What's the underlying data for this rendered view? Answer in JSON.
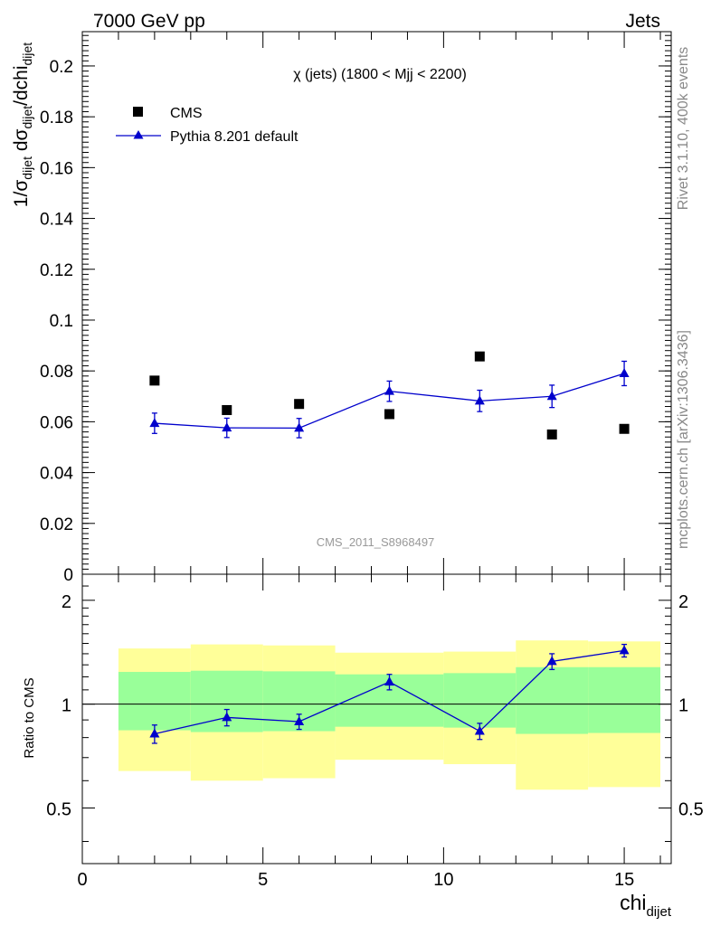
{
  "header": {
    "left": "7000 GeV pp",
    "right": "Jets"
  },
  "side_text": {
    "rivet": "Rivet 3.1.10,  400k events",
    "mcplots": "mcplots.cern.ch [arXiv:1306.3436]"
  },
  "colors": {
    "cms": "#000000",
    "pythia": "#0000cc",
    "band_inner": "#99ff99",
    "band_outer": "#ffff99",
    "watermark": "#999999"
  },
  "chart_data": [
    {
      "type": "scatter",
      "title": "χ (jets) (1800 < Mjj < 2200)",
      "ylabel": {
        "main": "1/σ",
        "sub1": "dijet",
        "mid": " dσ",
        "sub2": "dijet",
        "tail": "/dchi",
        "sub3": "dijet"
      },
      "watermark": "CMS_2011_S8968497",
      "xlim": [
        0,
        16.3
      ],
      "ylim": [
        0,
        0.2135
      ],
      "yticks": [
        0,
        0.02,
        0.04,
        0.06,
        0.08,
        0.1,
        0.12,
        0.14,
        0.16,
        0.18,
        0.2
      ],
      "ytick_labels": [
        "0",
        "0.02",
        "0.04",
        "0.06",
        "0.08",
        "0.1",
        "0.12",
        "0.14",
        "0.16",
        "0.18",
        "0.2"
      ],
      "legend_position": "top-left",
      "series": [
        {
          "name": "CMS",
          "marker": "square",
          "x": [
            2,
            4,
            6,
            8.5,
            11,
            13,
            15
          ],
          "y": [
            0.0762,
            0.0646,
            0.067,
            0.063,
            0.0857,
            0.055,
            0.0572
          ]
        },
        {
          "name": "Pythia 8.201 default",
          "marker": "triangle",
          "x": [
            2,
            4,
            6,
            8.5,
            11,
            13,
            15
          ],
          "y": [
            0.0594,
            0.0576,
            0.0575,
            0.072,
            0.0682,
            0.07,
            0.079
          ],
          "yerr": [
            0.004,
            0.0038,
            0.0038,
            0.004,
            0.0042,
            0.0044,
            0.0048
          ]
        }
      ]
    },
    {
      "type": "line",
      "ylabel": "Ratio to CMS",
      "xlabel": "chi",
      "xlabel_sub": "dijet",
      "xlim": [
        0,
        16.3
      ],
      "ylim": [
        0.345,
        2.38
      ],
      "yscale": "log",
      "xticks": [
        0,
        5,
        10,
        15
      ],
      "xtick_labels": [
        "0",
        "5",
        "10",
        "15"
      ],
      "yticks": [
        0.5,
        1,
        2
      ],
      "ytick_labels": [
        "0.5",
        "1",
        "2"
      ],
      "reference_line": 1,
      "bands": {
        "bin_edges": [
          1,
          3,
          5,
          7,
          10,
          12,
          14,
          16
        ],
        "inner_low": [
          0.84,
          0.83,
          0.835,
          0.86,
          0.855,
          0.82,
          0.825
        ],
        "inner_high": [
          1.24,
          1.25,
          1.245,
          1.22,
          1.23,
          1.28,
          1.28
        ],
        "outer_low": [
          0.64,
          0.6,
          0.61,
          0.69,
          0.67,
          0.565,
          0.575
        ],
        "outer_high": [
          1.45,
          1.49,
          1.48,
          1.41,
          1.42,
          1.53,
          1.52
        ]
      },
      "series": [
        {
          "name": "Pythia 8.201 default",
          "x": [
            2,
            4,
            6,
            8.5,
            11,
            13,
            15
          ],
          "y": [
            0.82,
            0.915,
            0.89,
            1.16,
            0.835,
            1.33,
            1.43
          ],
          "yerr": [
            0.05,
            0.05,
            0.045,
            0.06,
            0.045,
            0.07,
            0.06
          ]
        }
      ]
    }
  ]
}
